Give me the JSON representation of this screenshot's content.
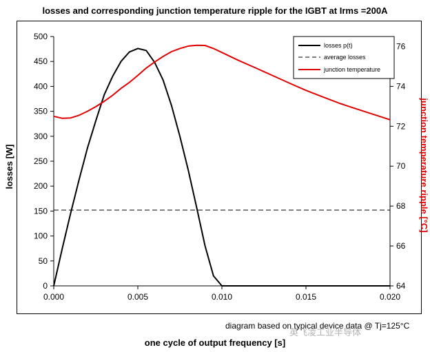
{
  "chart_data": {
    "type": "line",
    "title": "losses and corresponding junction temperature ripple for the IGBT at Irms =200A",
    "xlabel": "one cycle of output frequency [s]",
    "ylabel": "losses [W]",
    "y2label": "junction temperature ripple [°C]",
    "xlim": [
      0,
      0.02
    ],
    "ylim": [
      0,
      500
    ],
    "y2lim": [
      64,
      76.5
    ],
    "x_ticks": [
      "0.000",
      "0.005",
      "0.010",
      "0.015",
      "0.020"
    ],
    "y_ticks": [
      "0",
      "50",
      "100",
      "150",
      "200",
      "250",
      "300",
      "350",
      "400",
      "450",
      "500"
    ],
    "y2_ticks": [
      "64",
      "66",
      "68",
      "70",
      "72",
      "74",
      "76"
    ],
    "grid": false,
    "legend_position": "top-right",
    "colors": {
      "losses": "#000000",
      "average": "#000000",
      "temperature": "#e00000"
    },
    "series": [
      {
        "name": "losses p(t)",
        "axis": "left",
        "style": "solid",
        "x": [
          0,
          0.0005,
          0.001,
          0.0015,
          0.002,
          0.0025,
          0.003,
          0.0035,
          0.004,
          0.0045,
          0.005,
          0.0055,
          0.006,
          0.0065,
          0.007,
          0.0075,
          0.008,
          0.0085,
          0.009,
          0.0095,
          0.01,
          0.0105,
          0.011,
          0.012,
          0.013,
          0.014,
          0.015,
          0.016,
          0.017,
          0.018,
          0.019,
          0.02
        ],
        "y": [
          0,
          74,
          145,
          212,
          276,
          331,
          383,
          420,
          450,
          469,
          476,
          472,
          448,
          413,
          362,
          300,
          232,
          157,
          80,
          20,
          0,
          0,
          0,
          0,
          0,
          0,
          0,
          0,
          0,
          0,
          0,
          0
        ]
      },
      {
        "name": "average losses",
        "axis": "left",
        "style": "dashed",
        "x": [
          0,
          0.02
        ],
        "y": [
          152,
          152
        ]
      },
      {
        "name": "junction temperature",
        "axis": "right",
        "style": "solid",
        "x": [
          0,
          0.0005,
          0.001,
          0.0015,
          0.002,
          0.0025,
          0.003,
          0.0035,
          0.004,
          0.0045,
          0.005,
          0.0055,
          0.006,
          0.0065,
          0.007,
          0.0075,
          0.008,
          0.0085,
          0.009,
          0.0095,
          0.01,
          0.011,
          0.012,
          0.013,
          0.014,
          0.015,
          0.016,
          0.017,
          0.018,
          0.019,
          0.02
        ],
        "y": [
          72.5,
          72.4,
          72.42,
          72.55,
          72.75,
          72.98,
          73.25,
          73.55,
          73.9,
          74.2,
          74.55,
          74.92,
          75.22,
          75.5,
          75.74,
          75.9,
          76.02,
          76.06,
          76.05,
          75.9,
          75.7,
          75.3,
          74.93,
          74.55,
          74.17,
          73.8,
          73.47,
          73.15,
          72.87,
          72.6,
          72.33
        ]
      }
    ],
    "note": "diagram based on typical device data @ Tj=125°C"
  },
  "watermark": "英飞凌工业半导体"
}
